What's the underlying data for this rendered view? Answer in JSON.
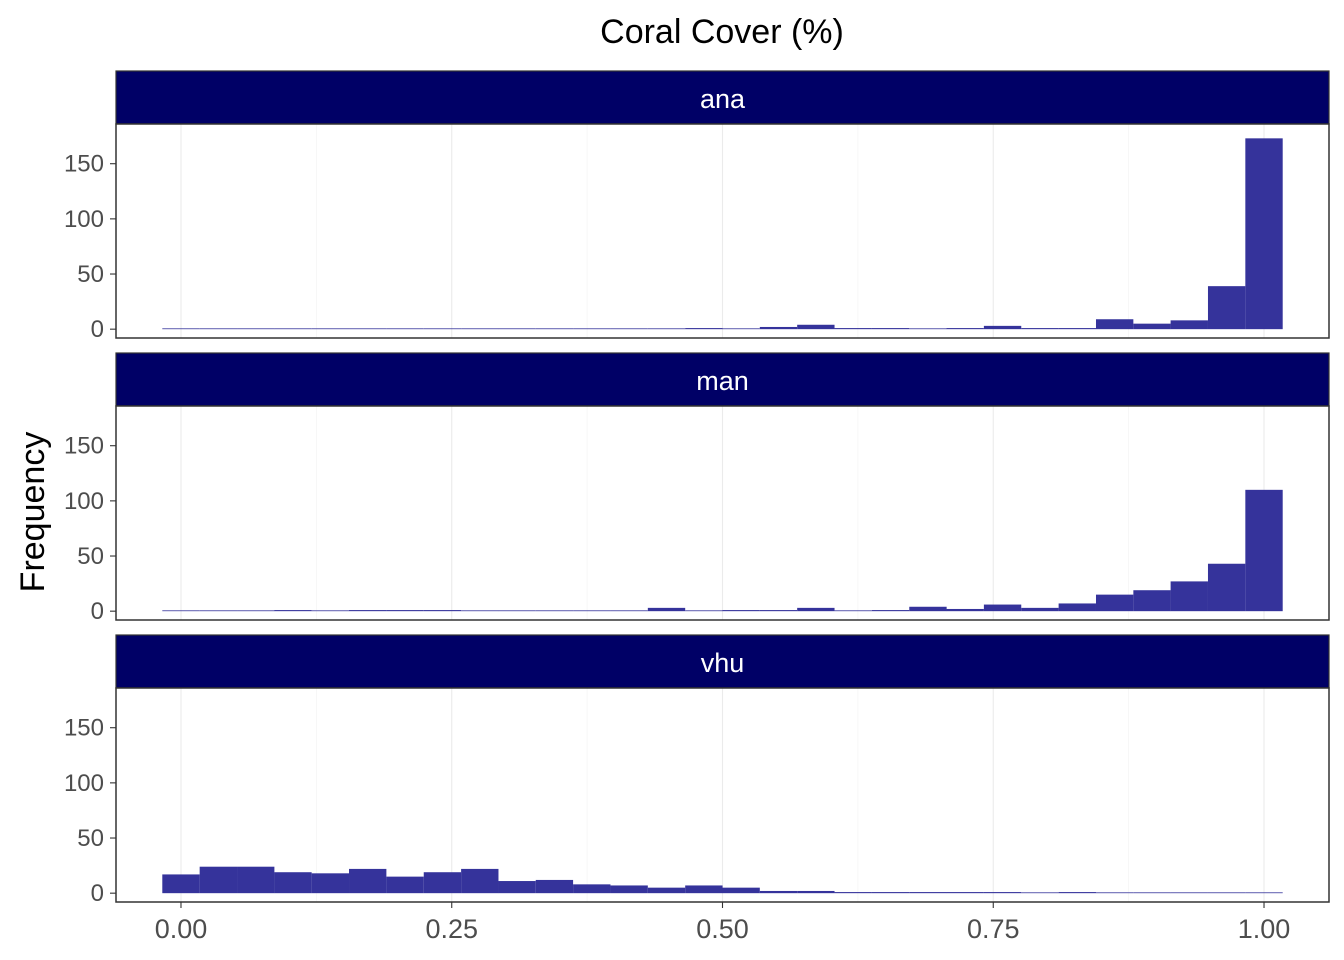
{
  "chart_data": {
    "type": "bar",
    "subtype": "faceted-histogram",
    "title": "Coral Cover (%)",
    "xlabel": "",
    "ylabel": "Frequency",
    "xlim": [
      -0.06,
      1.06
    ],
    "ylim": [
      -8,
      186
    ],
    "x_ticks": [
      0.0,
      0.25,
      0.5,
      0.75,
      1.0
    ],
    "x_tick_labels": [
      "0.00",
      "0.25",
      "0.50",
      "0.75",
      "1.00"
    ],
    "y_ticks": [
      0,
      50,
      100,
      150
    ],
    "y_tick_labels": [
      "0",
      "50",
      "100",
      "150"
    ],
    "grid": true,
    "legend": "none",
    "bin_width": 0.0345,
    "bar_color": "#35339b",
    "strip_color": "#000066",
    "bin_centers": [
      0.0,
      0.0345,
      0.069,
      0.1034,
      0.1379,
      0.1724,
      0.2069,
      0.2414,
      0.2759,
      0.3103,
      0.3448,
      0.3793,
      0.4138,
      0.4483,
      0.4828,
      0.5172,
      0.5517,
      0.5862,
      0.6207,
      0.6552,
      0.6897,
      0.7241,
      0.7586,
      0.7931,
      0.8276,
      0.8621,
      0.8966,
      0.931,
      0.9655,
      1.0
    ],
    "series": [
      {
        "name": "ana",
        "values": [
          0,
          0,
          0,
          0,
          0,
          0,
          0,
          0,
          0,
          0,
          0,
          0,
          0,
          0,
          1,
          0,
          2,
          4,
          1,
          1,
          0,
          1,
          3,
          1,
          1,
          9,
          5,
          8,
          39,
          173
        ]
      },
      {
        "name": "man",
        "values": [
          0,
          0,
          0,
          1,
          0,
          1,
          1,
          1,
          0,
          0,
          0,
          0,
          0,
          3,
          0,
          1,
          1,
          3,
          0,
          1,
          4,
          2,
          6,
          3,
          7,
          15,
          19,
          27,
          43,
          110
        ]
      },
      {
        "name": "vhu",
        "values": [
          17,
          24,
          24,
          19,
          18,
          22,
          15,
          19,
          22,
          11,
          12,
          8,
          7,
          5,
          7,
          5,
          2,
          2,
          1,
          1,
          1,
          1,
          1,
          0,
          1,
          0,
          0,
          0,
          0,
          0
        ]
      }
    ]
  }
}
